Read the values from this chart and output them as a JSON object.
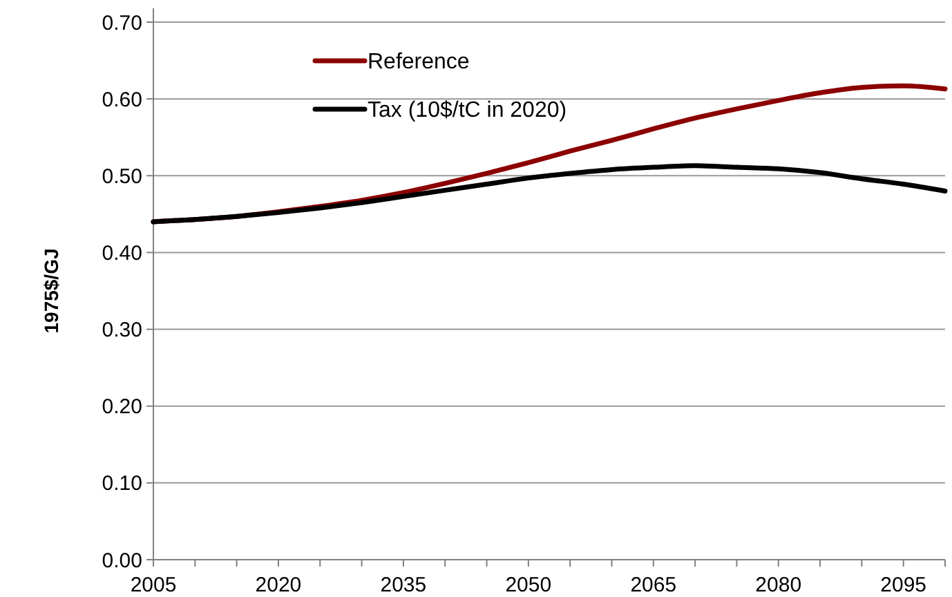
{
  "chart_data": {
    "type": "line",
    "ylabel": "1975$/GJ",
    "x": [
      2005,
      2010,
      2015,
      2020,
      2025,
      2030,
      2035,
      2040,
      2045,
      2050,
      2055,
      2060,
      2065,
      2070,
      2075,
      2080,
      2085,
      2090,
      2095,
      2100
    ],
    "series": [
      {
        "name": "Reference",
        "color": "#8b0000",
        "values": [
          0.44,
          0.443,
          0.447,
          0.453,
          0.46,
          0.468,
          0.478,
          0.49,
          0.503,
          0.517,
          0.532,
          0.546,
          0.561,
          0.575,
          0.587,
          0.598,
          0.608,
          0.615,
          0.617,
          0.613
        ]
      },
      {
        "name": "Tax (10$/tC in 2020)",
        "color": "#000000",
        "values": [
          0.44,
          0.443,
          0.447,
          0.452,
          0.458,
          0.465,
          0.473,
          0.481,
          0.489,
          0.497,
          0.503,
          0.508,
          0.511,
          0.513,
          0.511,
          0.509,
          0.504,
          0.496,
          0.489,
          0.48
        ]
      }
    ],
    "xlim": [
      2005,
      2100
    ],
    "xticks": [
      2005,
      {
        "value": 2010,
        "label": null
      },
      {
        "value": 2015,
        "label": null
      },
      2020,
      {
        "value": 2025,
        "label": null
      },
      {
        "value": 2030,
        "label": null
      },
      2035,
      {
        "value": 2040,
        "label": null
      },
      {
        "value": 2045,
        "label": null
      },
      2050,
      {
        "value": 2055,
        "label": null
      },
      {
        "value": 2060,
        "label": null
      },
      2065,
      {
        "value": 2070,
        "label": null
      },
      {
        "value": 2075,
        "label": null
      },
      2080,
      {
        "value": 2085,
        "label": null
      },
      {
        "value": 2090,
        "label": null
      },
      2095,
      {
        "value": 2100,
        "label": null
      }
    ],
    "ylim": [
      0,
      0.7
    ],
    "yticks": [
      {
        "value": 0,
        "label": "0.00"
      },
      {
        "value": 0.1,
        "label": "0.10"
      },
      {
        "value": 0.2,
        "label": "0.20"
      },
      {
        "value": 0.3,
        "label": "0.30"
      },
      {
        "value": 0.4,
        "label": "0.40"
      },
      {
        "value": 0.5,
        "label": "0.50"
      },
      {
        "value": 0.6,
        "label": "0.60"
      },
      {
        "value": 0.7,
        "label": "0.70"
      }
    ],
    "grid": "y",
    "legend": "top left",
    "marker": "none",
    "line_style": "solid"
  }
}
